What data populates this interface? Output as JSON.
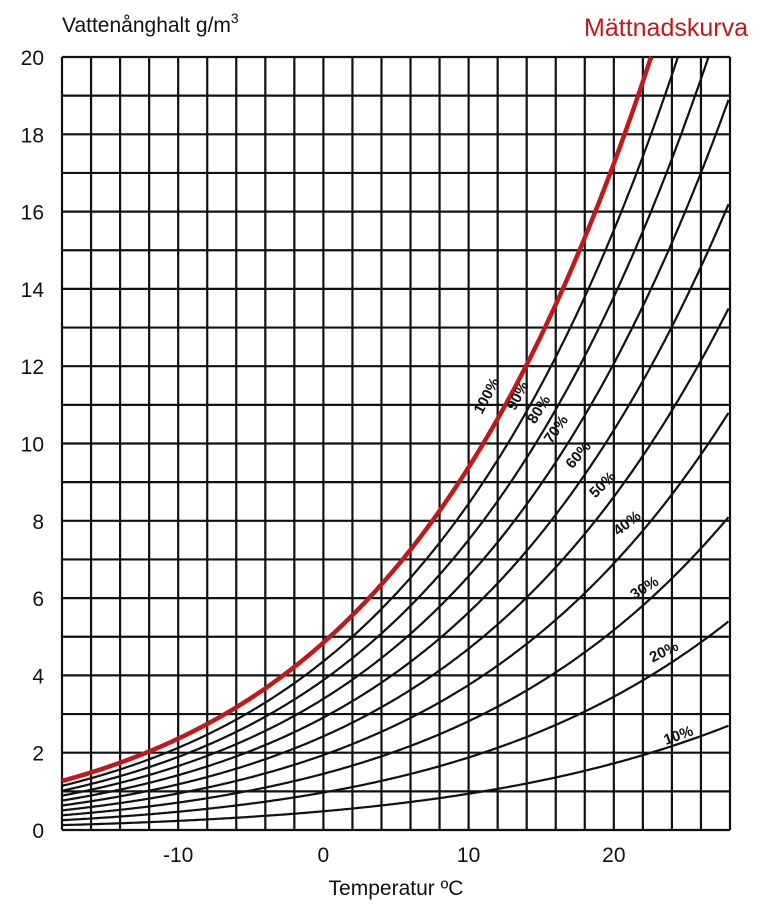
{
  "chart_data": {
    "type": "line",
    "ylabel": "Vattenånghalt g/m",
    "ylabel_superscript": "3",
    "xlabel": "Temperatur ºC",
    "xlim": [
      -18,
      28
    ],
    "ylim": [
      0,
      20
    ],
    "x_ticks": [
      "-10",
      "0",
      "10",
      "20"
    ],
    "x_tick_values": [
      -10,
      0,
      10,
      20
    ],
    "y_ticks": [
      "0",
      "2",
      "4",
      "6",
      "8",
      "10",
      "12",
      "14",
      "16",
      "18",
      "20"
    ],
    "y_tick_values": [
      0,
      2,
      4,
      6,
      8,
      10,
      12,
      14,
      16,
      18,
      20
    ],
    "grid": {
      "x_step": 2,
      "y_step": 1,
      "on": true
    },
    "saturation_curve": {
      "label": "Mättnadskurva",
      "color": "#c0181c",
      "points": [
        [
          -18,
          0.95
        ],
        [
          -10,
          2.1
        ],
        [
          -5,
          3.2
        ],
        [
          0,
          4.85
        ],
        [
          5,
          6.8
        ],
        [
          10,
          9.4
        ],
        [
          15,
          12.8
        ],
        [
          20,
          17.3
        ],
        [
          22.4,
          20
        ]
      ]
    },
    "series": [
      {
        "name": "100%",
        "fraction": 1.0,
        "color": "#c0181c"
      },
      {
        "name": "90%",
        "fraction": 0.9,
        "color": "#111111"
      },
      {
        "name": "80%",
        "fraction": 0.8,
        "color": "#111111"
      },
      {
        "name": "70%",
        "fraction": 0.7,
        "color": "#111111"
      },
      {
        "name": "60%",
        "fraction": 0.6,
        "color": "#111111"
      },
      {
        "name": "50%",
        "fraction": 0.5,
        "color": "#111111"
      },
      {
        "name": "40%",
        "fraction": 0.4,
        "color": "#111111"
      },
      {
        "name": "30%",
        "fraction": 0.3,
        "color": "#111111"
      },
      {
        "name": "20%",
        "fraction": 0.2,
        "color": "#111111"
      },
      {
        "name": "10%",
        "fraction": 0.1,
        "color": "#111111"
      }
    ]
  }
}
